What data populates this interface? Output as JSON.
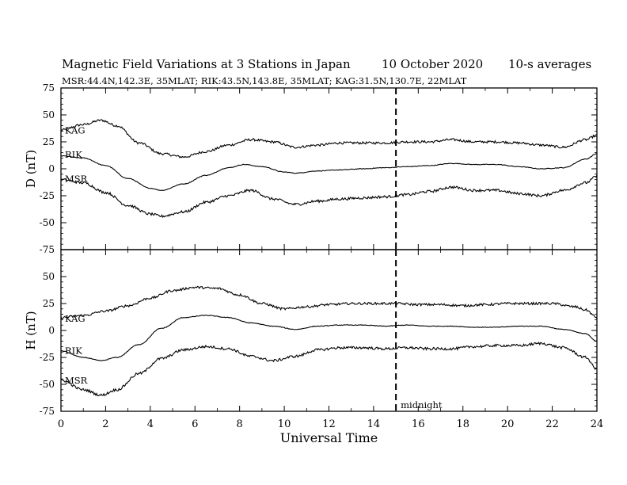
{
  "header": {
    "title": "Magnetic Field Variations at 3 Stations in Japan",
    "date": "10 October 2020",
    "averages": "10-s averages",
    "stations_line": "MSR:44.4N,142.3E, 35MLAT;  RIK:43.5N,143.8E, 35MLAT;  KAG:31.5N,130.7E, 22MLAT"
  },
  "chart_data": [
    {
      "type": "line",
      "panel": "D",
      "ylabel": "D (nT)",
      "ylim": [
        -75,
        75
      ],
      "yticks": [
        -75,
        -50,
        -25,
        0,
        25,
        50,
        75
      ],
      "xlim": [
        0,
        24
      ],
      "marker_time": 15,
      "series": [
        {
          "name": "KAG",
          "x": [
            0,
            1,
            1.8,
            2.5,
            3.5,
            4.5,
            5.5,
            6.5,
            7.5,
            8.5,
            9.5,
            10.5,
            11.5,
            12.5,
            13.5,
            14.5,
            15.5,
            16.5,
            17.5,
            18.5,
            19.5,
            20.5,
            21.5,
            22.5,
            23.5,
            24
          ],
          "y": [
            36,
            41,
            45,
            40,
            24,
            14,
            11,
            16,
            22,
            27,
            25,
            20,
            22,
            24,
            24,
            24,
            25,
            25,
            27,
            25,
            25,
            24,
            22,
            20,
            27,
            31
          ]
        },
        {
          "name": "RIK",
          "x": [
            0,
            1,
            2,
            3,
            4,
            4.5,
            5.5,
            6.5,
            7.5,
            8.2,
            9,
            10,
            10.5,
            11.5,
            12.5,
            13.5,
            14.5,
            15.5,
            16.5,
            17.5,
            18.5,
            19.5,
            20.5,
            21.5,
            22.5,
            23.5,
            24
          ],
          "y": [
            12,
            10,
            3,
            -9,
            -18,
            -20,
            -14,
            -6,
            1,
            4,
            2,
            -3,
            -4,
            -2,
            -1,
            0,
            1,
            2,
            3,
            5,
            4,
            4,
            2,
            0,
            1,
            9,
            14
          ]
        },
        {
          "name": "MSR",
          "x": [
            0,
            1,
            2,
            3,
            4,
            4.5,
            5.5,
            6.5,
            7.5,
            8.5,
            9.5,
            10.5,
            11.5,
            12.5,
            13.5,
            14.5,
            15.5,
            16.5,
            17.5,
            18.5,
            19.5,
            20.5,
            21.5,
            22.5,
            23.5,
            24
          ],
          "y": [
            -10,
            -13,
            -22,
            -34,
            -42,
            -44,
            -40,
            -31,
            -25,
            -20,
            -28,
            -33,
            -30,
            -28,
            -27,
            -26,
            -24,
            -21,
            -17,
            -20,
            -20,
            -23,
            -25,
            -20,
            -13,
            -7
          ]
        }
      ]
    },
    {
      "type": "line",
      "panel": "H",
      "ylabel": "H (nT)",
      "xlabel": "Universal Time",
      "ylim": [
        -75,
        75
      ],
      "yticks": [
        -75,
        -50,
        -25,
        0,
        25,
        50,
        75
      ],
      "xlim": [
        0,
        24
      ],
      "xticks": [
        0,
        2,
        4,
        6,
        8,
        10,
        12,
        14,
        16,
        18,
        20,
        22,
        24
      ],
      "marker_time": 15,
      "marker_label": "midnight",
      "series": [
        {
          "name": "KAG",
          "x": [
            0,
            1,
            2,
            3,
            4,
            5,
            6,
            7,
            8,
            9,
            10,
            11,
            12,
            13,
            14,
            15,
            16,
            17,
            18,
            19,
            20,
            21,
            22,
            23,
            23.5,
            24
          ],
          "y": [
            12,
            14,
            18,
            23,
            30,
            37,
            40,
            39,
            33,
            25,
            20,
            22,
            24,
            25,
            25,
            25,
            24,
            24,
            23,
            24,
            25,
            25,
            25,
            22,
            19,
            12
          ]
        },
        {
          "name": "RIK",
          "x": [
            0,
            1,
            1.8,
            2.5,
            3.5,
            4.5,
            5.5,
            6.5,
            7.5,
            8.5,
            9.5,
            10.5,
            11.5,
            12.5,
            13.5,
            14.5,
            15.5,
            16.5,
            17.5,
            18.5,
            19.5,
            20.5,
            21.5,
            22.5,
            23.5,
            24
          ],
          "y": [
            -19,
            -25,
            -28,
            -25,
            -13,
            2,
            12,
            14,
            12,
            7,
            4,
            1,
            4,
            5,
            5,
            4,
            5,
            4,
            4,
            3,
            3,
            4,
            4,
            1,
            -3,
            -10
          ]
        },
        {
          "name": "MSR",
          "x": [
            0,
            1,
            1.8,
            2.5,
            3.5,
            4.5,
            5.5,
            6.5,
            7.5,
            8.5,
            9.5,
            10.5,
            11.5,
            12.5,
            13.5,
            14.5,
            15.5,
            16.5,
            17.5,
            18.5,
            19.5,
            20.5,
            21.5,
            22.5,
            23.5,
            24
          ],
          "y": [
            -46,
            -55,
            -60,
            -55,
            -40,
            -26,
            -18,
            -15,
            -17,
            -24,
            -28,
            -24,
            -18,
            -16,
            -16,
            -17,
            -16,
            -17,
            -17,
            -15,
            -14,
            -14,
            -12,
            -16,
            -25,
            -36
          ]
        }
      ]
    }
  ]
}
